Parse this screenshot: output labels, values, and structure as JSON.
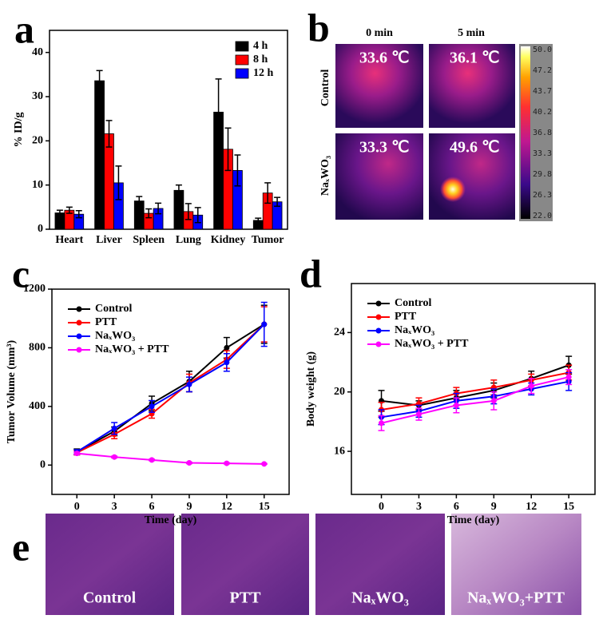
{
  "chart_data": [
    {
      "type": "bar",
      "panel": "a",
      "ylabel": "% ID/g",
      "categories": [
        "Heart",
        "Liver",
        "Spleen",
        "Lung",
        "Kidney",
        "Tumor"
      ],
      "series": [
        {
          "name": "4 h",
          "color": "#000000",
          "values": [
            3.7,
            33.6,
            6.4,
            8.8,
            26.5,
            2.0
          ],
          "errors": [
            0.6,
            2.3,
            1.0,
            1.2,
            7.5,
            0.5
          ]
        },
        {
          "name": "8 h",
          "color": "#ff0000",
          "values": [
            4.3,
            21.6,
            3.6,
            4.0,
            18.1,
            8.2
          ],
          "errors": [
            0.7,
            3.0,
            1.0,
            1.8,
            4.8,
            2.3
          ]
        },
        {
          "name": "12 h",
          "color": "#0000ff",
          "values": [
            3.4,
            10.5,
            4.7,
            3.2,
            13.3,
            6.2
          ],
          "errors": [
            0.8,
            3.8,
            1.2,
            1.7,
            3.5,
            1.0
          ]
        }
      ],
      "ylim": [
        0,
        45
      ],
      "yticks": [
        0,
        10,
        20,
        30,
        40
      ],
      "legend": "upper right"
    },
    {
      "type": "line",
      "panel": "c",
      "xlabel": "Time (day)",
      "ylabel": "Tumor Volume (mm³)",
      "x": [
        0,
        3,
        6,
        9,
        12,
        15
      ],
      "xlim": [
        -2,
        17
      ],
      "xticks": [
        0,
        3,
        6,
        9,
        12,
        15
      ],
      "ylim": [
        -200,
        1200
      ],
      "yticks": [
        0,
        400,
        800,
        1200
      ],
      "legend": "upper left",
      "series": [
        {
          "name": "Control",
          "color": "#000000",
          "values": [
            90,
            230,
            420,
            570,
            800,
            960
          ],
          "errors": [
            20,
            30,
            50,
            70,
            70,
            130
          ]
        },
        {
          "name": "PTT",
          "color": "#ff0000",
          "values": [
            85,
            210,
            350,
            560,
            720,
            960
          ],
          "errors": [
            15,
            30,
            30,
            60,
            60,
            120
          ]
        },
        {
          "name": "NaₓWO₃",
          "color": "#0000ff",
          "values": [
            90,
            250,
            400,
            550,
            700,
            960
          ],
          "errors": [
            15,
            40,
            40,
            50,
            60,
            150
          ]
        },
        {
          "name": "NaₓWO₃ + PTT",
          "color": "#ff00ff",
          "values": [
            80,
            55,
            35,
            15,
            12,
            8
          ],
          "errors": [
            8,
            6,
            5,
            5,
            4,
            3
          ]
        }
      ]
    },
    {
      "type": "line",
      "panel": "d",
      "xlabel": "Time (day)",
      "ylabel": "Body weight (g)",
      "x": [
        0,
        3,
        6,
        9,
        12,
        15
      ],
      "xlim": [
        -2.4,
        17.1
      ],
      "xticks": [
        0,
        3,
        6,
        9,
        12,
        15
      ],
      "ylim": [
        13.1,
        27.3
      ],
      "yticks": [
        16,
        20,
        24
      ],
      "legend": "upper left",
      "series": [
        {
          "name": "Control",
          "color": "#000000",
          "values": [
            19.4,
            19.1,
            19.6,
            20.1,
            20.9,
            21.8
          ],
          "errors": [
            0.7,
            0.3,
            0.5,
            0.5,
            0.5,
            0.6
          ]
        },
        {
          "name": "PTT",
          "color": "#ff0000",
          "values": [
            18.8,
            19.2,
            19.9,
            20.3,
            20.8,
            21.3
          ],
          "errors": [
            0.5,
            0.4,
            0.4,
            0.5,
            0.4,
            0.5
          ]
        },
        {
          "name": "NaₓWO₃",
          "color": "#0000ff",
          "values": [
            18.3,
            18.7,
            19.4,
            19.7,
            20.2,
            20.7
          ],
          "errors": [
            0.5,
            0.4,
            0.5,
            0.5,
            0.4,
            0.6
          ]
        },
        {
          "name": "NaₓWO₃ + PTT",
          "color": "#ff00ff",
          "values": [
            17.9,
            18.5,
            19.1,
            19.4,
            20.4,
            21.0
          ],
          "errors": [
            0.5,
            0.4,
            0.5,
            0.6,
            0.5,
            0.5
          ]
        }
      ]
    }
  ],
  "thermal": {
    "panel": "b",
    "columns": [
      "0 min",
      "5 min"
    ],
    "rows": [
      "Control",
      "NaₓWO₃"
    ],
    "readings": [
      [
        "33.6 ℃",
        "36.1 ℃"
      ],
      [
        "33.3 ℃",
        "49.6 ℃"
      ]
    ],
    "colorbar": [
      "50.0",
      "47.2",
      "43.7",
      "40.2",
      "36.8",
      "33.3",
      "29.8",
      "26.3",
      "22.0"
    ]
  },
  "histology": {
    "panel": "e",
    "labels": [
      "Control",
      "PTT",
      "NaₓWO₃",
      "NaₓWO₃+PTT"
    ]
  }
}
